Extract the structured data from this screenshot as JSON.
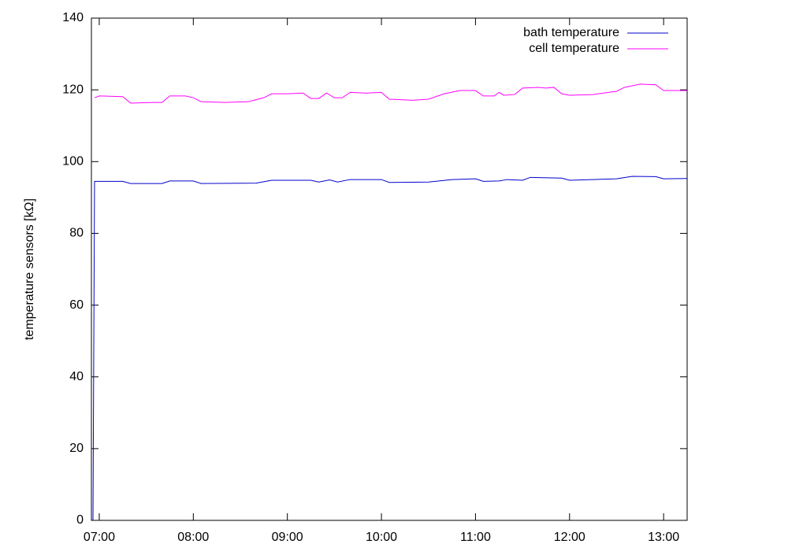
{
  "chart_data": {
    "type": "line",
    "y_label": "temperature sensors [kΩ]",
    "xlim": [
      "06:55",
      "13:15"
    ],
    "xticks": [
      "07:00",
      "08:00",
      "09:00",
      "10:00",
      "11:00",
      "12:00",
      "13:00"
    ],
    "ylim": [
      0,
      140
    ],
    "yticks": [
      0,
      20,
      40,
      60,
      80,
      100,
      120,
      140
    ],
    "grid": false,
    "legend": "upper right",
    "series": [
      {
        "name": "bath temperature",
        "color": "#0000cc",
        "x": [
          "06:56",
          "06:57",
          "07:15",
          "07:20",
          "07:40",
          "07:45",
          "08:00",
          "08:05",
          "08:40",
          "08:50",
          "09:15",
          "09:20",
          "09:27",
          "09:32",
          "09:40",
          "10:00",
          "10:05",
          "10:30",
          "10:45",
          "11:00",
          "11:05",
          "11:15",
          "11:20",
          "11:30",
          "11:35",
          "11:55",
          "12:00",
          "12:30",
          "12:40",
          "12:55",
          "13:00",
          "13:15"
        ],
        "values": [
          0,
          94.5,
          94.5,
          93.9,
          93.9,
          94.6,
          94.6,
          93.9,
          94.0,
          94.8,
          94.8,
          94.3,
          94.9,
          94.3,
          95.0,
          95.0,
          94.2,
          94.3,
          95.0,
          95.2,
          94.5,
          94.6,
          95.0,
          94.8,
          95.6,
          95.4,
          94.8,
          95.2,
          95.9,
          95.8,
          95.2,
          95.3
        ]
      },
      {
        "name": "cell temperature",
        "color": "#ff00ff",
        "x": [
          "06:57",
          "07:00",
          "07:15",
          "07:20",
          "07:35",
          "07:40",
          "07:45",
          "07:55",
          "08:00",
          "08:05",
          "08:20",
          "08:35",
          "08:45",
          "08:50",
          "09:00",
          "09:10",
          "09:15",
          "09:20",
          "09:25",
          "09:30",
          "09:35",
          "09:40",
          "09:50",
          "10:00",
          "10:05",
          "10:20",
          "10:30",
          "10:40",
          "10:50",
          "11:00",
          "11:05",
          "11:12",
          "11:15",
          "11:18",
          "11:25",
          "11:30",
          "11:40",
          "11:45",
          "11:50",
          "11:55",
          "12:00",
          "12:15",
          "12:30",
          "12:35",
          "12:45",
          "12:55",
          "13:00",
          "13:15"
        ],
        "values": [
          117.8,
          118.3,
          118.1,
          116.3,
          116.5,
          116.5,
          118.3,
          118.3,
          117.8,
          116.7,
          116.5,
          116.7,
          117.8,
          118.9,
          118.9,
          119.1,
          117.6,
          117.6,
          119.1,
          117.8,
          117.8,
          119.3,
          119.1,
          119.3,
          117.4,
          117.1,
          117.4,
          118.9,
          119.8,
          119.8,
          118.3,
          118.3,
          119.3,
          118.5,
          118.7,
          120.5,
          120.7,
          120.5,
          120.7,
          118.9,
          118.5,
          118.7,
          119.6,
          120.7,
          121.6,
          121.4,
          119.8,
          119.8
        ]
      }
    ]
  }
}
